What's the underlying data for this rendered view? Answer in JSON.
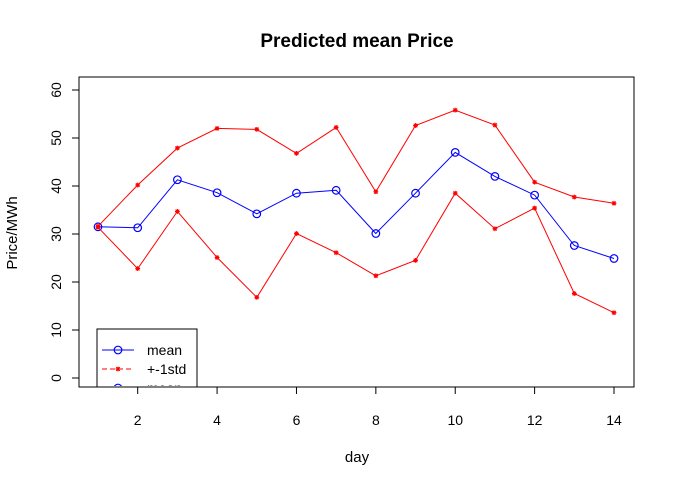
{
  "chart_data": {
    "type": "line",
    "title": "Predicted mean Price",
    "xlabel": "day",
    "ylabel": "Price/MWh",
    "x": [
      1,
      2,
      3,
      4,
      5,
      6,
      7,
      8,
      9,
      10,
      11,
      12,
      13,
      14
    ],
    "xlim": [
      1,
      14
    ],
    "ylim": [
      0,
      60
    ],
    "xticks": [
      "2",
      "4",
      "6",
      "8",
      "10",
      "12",
      "14"
    ],
    "yticks": [
      "0",
      "10",
      "20",
      "30",
      "40",
      "50",
      "60"
    ],
    "series": [
      {
        "name": "mean",
        "color": "#0000ff",
        "marker": "circle",
        "linestyle": "solid",
        "values": [
          31.5,
          31.3,
          41.3,
          38.6,
          34.2,
          38.5,
          39.1,
          30.1,
          38.5,
          47.0,
          42.0,
          38.1,
          27.6,
          24.9
        ]
      },
      {
        "name": "+1std",
        "color": "#ff0000",
        "marker": "star",
        "linestyle": "solid",
        "values": [
          31.6,
          40.2,
          47.9,
          52.0,
          51.8,
          46.8,
          52.2,
          38.8,
          52.6,
          55.8,
          52.7,
          40.8,
          37.7,
          36.4
        ]
      },
      {
        "name": "-1std",
        "color": "#ff0000",
        "marker": "star",
        "linestyle": "solid",
        "values": [
          31.4,
          22.8,
          34.7,
          25.1,
          16.8,
          30.1,
          26.1,
          21.3,
          24.5,
          38.5,
          31.1,
          35.4,
          17.6,
          13.6
        ]
      }
    ],
    "legend": {
      "position": "bottom-left",
      "entries": [
        {
          "label": "mean",
          "color": "#0000ff",
          "marker": "circle",
          "linestyle": "solid"
        },
        {
          "label": "+-1std",
          "color": "#ff0000",
          "marker": "star",
          "linestyle": "dashed"
        },
        {
          "label": "mean",
          "color": "#0000ff",
          "marker": "circle",
          "linestyle": "solid"
        }
      ]
    }
  }
}
